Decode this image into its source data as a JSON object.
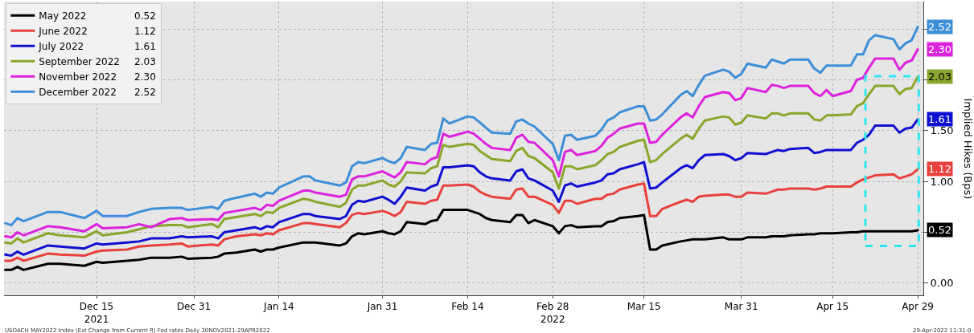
{
  "chart_data": {
    "type": "line",
    "x": [
      "2021-11-30",
      "2021-12-01",
      "2021-12-02",
      "2021-12-03",
      "2021-12-07",
      "2021-12-09",
      "2021-12-13",
      "2021-12-15",
      "2021-12-16",
      "2021-12-20",
      "2021-12-22",
      "2021-12-24",
      "2021-12-27",
      "2021-12-29",
      "2021-12-30",
      "2022-01-03",
      "2022-01-04",
      "2022-01-05",
      "2022-01-07",
      "2022-01-10",
      "2022-01-11",
      "2022-01-12",
      "2022-01-13",
      "2022-01-14",
      "2022-01-18",
      "2022-01-19",
      "2022-01-20",
      "2022-01-24",
      "2022-01-25",
      "2022-01-26",
      "2022-01-27",
      "2022-01-28",
      "2022-01-31",
      "2022-02-01",
      "2022-02-02",
      "2022-02-03",
      "2022-02-04",
      "2022-02-07",
      "2022-02-08",
      "2022-02-09",
      "2022-02-10",
      "2022-02-11",
      "2022-02-14",
      "2022-02-15",
      "2022-02-16",
      "2022-02-17",
      "2022-02-18",
      "2022-02-21",
      "2022-02-22",
      "2022-02-23",
      "2022-02-24",
      "2022-02-25",
      "2022-02-28",
      "2022-03-01",
      "2022-03-02",
      "2022-03-03",
      "2022-03-04",
      "2022-03-07",
      "2022-03-08",
      "2022-03-09",
      "2022-03-10",
      "2022-03-11",
      "2022-03-14",
      "2022-03-15",
      "2022-03-16",
      "2022-03-17",
      "2022-03-18",
      "2022-03-21",
      "2022-03-22",
      "2022-03-23",
      "2022-03-24",
      "2022-03-25",
      "2022-03-28",
      "2022-03-29",
      "2022-03-30",
      "2022-03-31",
      "2022-04-01",
      "2022-04-04",
      "2022-04-05",
      "2022-04-06",
      "2022-04-07",
      "2022-04-08",
      "2022-04-11",
      "2022-04-12",
      "2022-04-13",
      "2022-04-14",
      "2022-04-15",
      "2022-04-18",
      "2022-04-19",
      "2022-04-20",
      "2022-04-21",
      "2022-04-22",
      "2022-04-25",
      "2022-04-26",
      "2022-04-27",
      "2022-04-28",
      "2022-04-29"
    ],
    "series": [
      {
        "name": "May 2022",
        "color": "#000000",
        "values": [
          0.13,
          0.13,
          0.16,
          0.13,
          0.19,
          0.19,
          0.17,
          0.21,
          0.2,
          0.22,
          0.23,
          0.25,
          0.25,
          0.26,
          0.24,
          0.25,
          0.26,
          0.29,
          0.3,
          0.33,
          0.31,
          0.33,
          0.33,
          0.35,
          0.4,
          0.4,
          0.4,
          0.37,
          0.39,
          0.46,
          0.49,
          0.48,
          0.51,
          0.49,
          0.48,
          0.51,
          0.6,
          0.58,
          0.61,
          0.62,
          0.72,
          0.72,
          0.72,
          0.7,
          0.68,
          0.64,
          0.62,
          0.6,
          0.67,
          0.67,
          0.59,
          0.62,
          0.56,
          0.49,
          0.56,
          0.57,
          0.55,
          0.56,
          0.56,
          0.6,
          0.61,
          0.64,
          0.66,
          0.67,
          0.33,
          0.33,
          0.37,
          0.41,
          0.42,
          0.43,
          0.43,
          0.43,
          0.45,
          0.43,
          0.43,
          0.43,
          0.45,
          0.45,
          0.46,
          0.46,
          0.46,
          0.47,
          0.48,
          0.48,
          0.49,
          0.49,
          0.49,
          0.5,
          0.5,
          0.51,
          0.51,
          0.51,
          0.51,
          0.51,
          0.51,
          0.51,
          0.52
        ],
        "value_labels": [
          null,
          null,
          null,
          null,
          null,
          null,
          null,
          null,
          null,
          null,
          null,
          null,
          null,
          null,
          null,
          null,
          null,
          null,
          null,
          null,
          null,
          null,
          null,
          null,
          null,
          null,
          null,
          null,
          null,
          null,
          null,
          null,
          null,
          null,
          null,
          null,
          null,
          null,
          null,
          null,
          null,
          null,
          null,
          null,
          null,
          null,
          null,
          null,
          null,
          null,
          null,
          null,
          null,
          null,
          null,
          null,
          null,
          null,
          null,
          null,
          null,
          null,
          null,
          null,
          null,
          null,
          null,
          null,
          null,
          null,
          null,
          null,
          null,
          null,
          null,
          null,
          null,
          null,
          null,
          null,
          null,
          null,
          null,
          null,
          null,
          null,
          null,
          null,
          null,
          null,
          null,
          null,
          null,
          null,
          null,
          null,
          "0.52"
        ]
      },
      {
        "name": "June 2022",
        "color": "#e8413c",
        "values": [
          0.22,
          0.22,
          0.25,
          0.22,
          0.29,
          0.28,
          0.27,
          0.31,
          0.32,
          0.33,
          0.36,
          0.37,
          0.38,
          0.39,
          0.36,
          0.38,
          0.37,
          0.43,
          0.46,
          0.48,
          0.47,
          0.49,
          0.48,
          0.52,
          0.59,
          0.59,
          0.58,
          0.55,
          0.59,
          0.67,
          0.69,
          0.68,
          0.71,
          0.69,
          0.66,
          0.7,
          0.8,
          0.78,
          0.81,
          0.82,
          0.96,
          0.96,
          0.97,
          0.95,
          0.9,
          0.87,
          0.85,
          0.83,
          0.92,
          0.93,
          0.85,
          0.85,
          0.77,
          0.69,
          0.81,
          0.81,
          0.78,
          0.83,
          0.83,
          0.87,
          0.88,
          0.92,
          0.97,
          0.98,
          0.66,
          0.66,
          0.73,
          0.8,
          0.82,
          0.8,
          0.85,
          0.86,
          0.87,
          0.87,
          0.85,
          0.85,
          0.89,
          0.88,
          0.9,
          0.92,
          0.92,
          0.93,
          0.93,
          0.92,
          0.93,
          0.95,
          0.95,
          0.95,
          0.99,
          1.02,
          1.04,
          1.06,
          1.07,
          1.03,
          1.05,
          1.07,
          1.12
        ],
        "value_labels": [
          null,
          null,
          null,
          null,
          null,
          null,
          null,
          null,
          null,
          null,
          null,
          null,
          null,
          null,
          null,
          null,
          null,
          null,
          null,
          null,
          null,
          null,
          null,
          null,
          null,
          null,
          null,
          null,
          null,
          null,
          null,
          null,
          null,
          null,
          null,
          null,
          null,
          null,
          null,
          null,
          null,
          null,
          null,
          null,
          null,
          null,
          null,
          null,
          null,
          null,
          null,
          null,
          null,
          null,
          null,
          null,
          null,
          null,
          null,
          null,
          null,
          null,
          null,
          null,
          null,
          null,
          null,
          null,
          null,
          null,
          null,
          null,
          null,
          null,
          null,
          null,
          null,
          null,
          null,
          null,
          null,
          null,
          null,
          null,
          null,
          null,
          null,
          null,
          null,
          null,
          null,
          null,
          null,
          null,
          null,
          null,
          "1.12"
        ]
      },
      {
        "name": "July 2022",
        "color": "#1010d0",
        "values": [
          0.28,
          0.27,
          0.31,
          0.28,
          0.37,
          0.36,
          0.34,
          0.39,
          0.38,
          0.4,
          0.41,
          0.44,
          0.44,
          0.46,
          0.45,
          0.46,
          0.44,
          0.5,
          0.52,
          0.55,
          0.53,
          0.56,
          0.55,
          0.6,
          0.68,
          0.68,
          0.66,
          0.63,
          0.66,
          0.77,
          0.81,
          0.8,
          0.85,
          0.82,
          0.78,
          0.85,
          0.94,
          0.91,
          0.95,
          0.97,
          1.14,
          1.14,
          1.16,
          1.15,
          1.09,
          1.05,
          1.03,
          1.01,
          1.1,
          1.12,
          1.03,
          1.01,
          0.91,
          0.8,
          0.96,
          0.98,
          0.95,
          0.99,
          1.01,
          1.07,
          1.08,
          1.12,
          1.17,
          1.19,
          0.93,
          0.94,
          0.99,
          1.13,
          1.16,
          1.13,
          1.21,
          1.26,
          1.27,
          1.25,
          1.21,
          1.23,
          1.28,
          1.27,
          1.29,
          1.31,
          1.3,
          1.32,
          1.33,
          1.28,
          1.29,
          1.31,
          1.31,
          1.31,
          1.38,
          1.41,
          1.46,
          1.55,
          1.55,
          1.48,
          1.52,
          1.53,
          1.61
        ],
        "value_labels": [
          null,
          null,
          null,
          null,
          null,
          null,
          null,
          null,
          null,
          null,
          null,
          null,
          null,
          null,
          null,
          null,
          null,
          null,
          null,
          null,
          null,
          null,
          null,
          null,
          null,
          null,
          null,
          null,
          null,
          null,
          null,
          null,
          null,
          null,
          null,
          null,
          null,
          null,
          null,
          null,
          null,
          null,
          null,
          null,
          null,
          null,
          null,
          null,
          null,
          null,
          null,
          null,
          null,
          null,
          null,
          null,
          null,
          null,
          null,
          null,
          null,
          null,
          null,
          null,
          null,
          null,
          null,
          null,
          null,
          null,
          null,
          null,
          null,
          null,
          null,
          null,
          null,
          null,
          null,
          null,
          null,
          null,
          null,
          null,
          null,
          null,
          null,
          null,
          null,
          null,
          null,
          null,
          null,
          null,
          null,
          null,
          "1.61"
        ]
      },
      {
        "name": "September 2022",
        "color": "#8aa62c",
        "values": [
          0.4,
          0.39,
          0.44,
          0.4,
          0.49,
          0.47,
          0.45,
          0.51,
          0.47,
          0.5,
          0.53,
          0.56,
          0.57,
          0.57,
          0.55,
          0.58,
          0.55,
          0.63,
          0.65,
          0.68,
          0.66,
          0.7,
          0.69,
          0.74,
          0.83,
          0.82,
          0.8,
          0.75,
          0.79,
          0.92,
          0.96,
          0.96,
          1.01,
          0.97,
          0.95,
          1.0,
          1.09,
          1.08,
          1.13,
          1.15,
          1.36,
          1.34,
          1.37,
          1.36,
          1.3,
          1.26,
          1.22,
          1.2,
          1.3,
          1.33,
          1.25,
          1.23,
          1.09,
          0.93,
          1.15,
          1.15,
          1.12,
          1.16,
          1.21,
          1.27,
          1.29,
          1.34,
          1.4,
          1.41,
          1.19,
          1.21,
          1.27,
          1.42,
          1.46,
          1.42,
          1.52,
          1.6,
          1.64,
          1.63,
          1.56,
          1.58,
          1.65,
          1.62,
          1.67,
          1.67,
          1.65,
          1.67,
          1.67,
          1.61,
          1.6,
          1.65,
          1.65,
          1.66,
          1.74,
          1.77,
          1.86,
          1.94,
          1.94,
          1.86,
          1.91,
          1.92,
          2.03
        ],
        "value_labels": [
          null,
          null,
          null,
          null,
          null,
          null,
          null,
          null,
          null,
          null,
          null,
          null,
          null,
          null,
          null,
          null,
          null,
          null,
          null,
          null,
          null,
          null,
          null,
          null,
          null,
          null,
          null,
          null,
          null,
          null,
          null,
          null,
          null,
          null,
          null,
          null,
          null,
          null,
          null,
          null,
          null,
          null,
          null,
          null,
          null,
          null,
          null,
          null,
          null,
          null,
          null,
          null,
          null,
          null,
          null,
          null,
          null,
          null,
          null,
          null,
          null,
          null,
          null,
          null,
          null,
          null,
          null,
          null,
          null,
          null,
          null,
          null,
          null,
          null,
          null,
          null,
          null,
          null,
          null,
          null,
          null,
          null,
          null,
          null,
          null,
          null,
          null,
          null,
          null,
          null,
          null,
          null,
          null,
          null,
          null,
          null,
          "2.03"
        ]
      },
      {
        "name": "November 2022",
        "color": "#dd22dd",
        "values": [
          0.46,
          0.45,
          0.5,
          0.47,
          0.56,
          0.55,
          0.51,
          0.58,
          0.54,
          0.55,
          0.58,
          0.55,
          0.63,
          0.64,
          0.62,
          0.63,
          0.62,
          0.69,
          0.71,
          0.74,
          0.72,
          0.77,
          0.76,
          0.81,
          0.91,
          0.91,
          0.89,
          0.85,
          0.87,
          1.02,
          1.05,
          1.05,
          1.1,
          1.07,
          1.04,
          1.09,
          1.19,
          1.17,
          1.22,
          1.24,
          1.47,
          1.44,
          1.49,
          1.47,
          1.42,
          1.37,
          1.33,
          1.31,
          1.43,
          1.46,
          1.39,
          1.38,
          1.21,
          1.05,
          1.29,
          1.31,
          1.26,
          1.3,
          1.35,
          1.43,
          1.47,
          1.52,
          1.57,
          1.57,
          1.38,
          1.39,
          1.46,
          1.63,
          1.67,
          1.63,
          1.74,
          1.83,
          1.88,
          1.87,
          1.8,
          1.82,
          1.92,
          1.88,
          1.95,
          1.94,
          1.92,
          1.94,
          1.94,
          1.87,
          1.84,
          1.9,
          1.84,
          1.89,
          2.0,
          2.02,
          2.12,
          2.21,
          2.21,
          2.1,
          2.17,
          2.19,
          2.3
        ],
        "value_labels": [
          null,
          null,
          null,
          null,
          null,
          null,
          null,
          null,
          null,
          null,
          null,
          null,
          null,
          null,
          null,
          null,
          null,
          null,
          null,
          null,
          null,
          null,
          null,
          null,
          null,
          null,
          null,
          null,
          null,
          null,
          null,
          null,
          null,
          null,
          null,
          null,
          null,
          null,
          null,
          null,
          null,
          null,
          null,
          null,
          null,
          null,
          null,
          null,
          null,
          null,
          null,
          null,
          null,
          null,
          null,
          null,
          null,
          null,
          null,
          null,
          null,
          null,
          null,
          null,
          null,
          null,
          null,
          null,
          null,
          null,
          null,
          null,
          null,
          null,
          null,
          null,
          null,
          null,
          null,
          null,
          null,
          null,
          null,
          null,
          null,
          null,
          null,
          null,
          null,
          null,
          null,
          null,
          null,
          null,
          null,
          null,
          "2.30"
        ]
      },
      {
        "name": "December 2022",
        "color": "#3d8ed8",
        "values": [
          0.59,
          0.57,
          0.64,
          0.61,
          0.7,
          0.7,
          0.64,
          0.71,
          0.66,
          0.66,
          0.7,
          0.73,
          0.74,
          0.74,
          0.72,
          0.75,
          0.73,
          0.81,
          0.84,
          0.88,
          0.85,
          0.89,
          0.88,
          0.94,
          1.05,
          1.05,
          1.01,
          0.96,
          0.99,
          1.15,
          1.19,
          1.18,
          1.23,
          1.2,
          1.18,
          1.23,
          1.34,
          1.31,
          1.37,
          1.38,
          1.62,
          1.57,
          1.64,
          1.63,
          1.58,
          1.53,
          1.48,
          1.47,
          1.59,
          1.61,
          1.57,
          1.54,
          1.37,
          1.21,
          1.45,
          1.46,
          1.41,
          1.45,
          1.51,
          1.6,
          1.63,
          1.68,
          1.74,
          1.74,
          1.6,
          1.61,
          1.66,
          1.85,
          1.89,
          1.84,
          1.95,
          2.04,
          2.1,
          2.08,
          2.02,
          2.06,
          2.16,
          2.12,
          2.2,
          2.18,
          2.16,
          2.2,
          2.2,
          2.11,
          2.07,
          2.14,
          2.14,
          2.14,
          2.25,
          2.25,
          2.39,
          2.44,
          2.4,
          2.3,
          2.36,
          2.39,
          2.52
        ],
        "value_labels": [
          null,
          null,
          null,
          null,
          null,
          null,
          null,
          null,
          null,
          null,
          null,
          null,
          null,
          null,
          null,
          null,
          null,
          null,
          null,
          null,
          null,
          null,
          null,
          null,
          null,
          null,
          null,
          null,
          null,
          null,
          null,
          null,
          null,
          null,
          null,
          null,
          null,
          null,
          null,
          null,
          null,
          null,
          null,
          null,
          null,
          null,
          null,
          null,
          null,
          null,
          null,
          null,
          null,
          null,
          null,
          null,
          null,
          null,
          null,
          null,
          null,
          null,
          null,
          null,
          null,
          null,
          null,
          null,
          null,
          null,
          null,
          null,
          null,
          null,
          null,
          null,
          null,
          null,
          null,
          null,
          null,
          null,
          null,
          null,
          null,
          null,
          null,
          null,
          null,
          null,
          null,
          null,
          null,
          null,
          null,
          null,
          "2.52"
        ]
      }
    ],
    "xlim": [
      "2021-11-29T19:00",
      "2022-04-29T22:00"
    ],
    "xticks": [
      {
        "value": "2021-12-15",
        "label": "Dec 15\n2021"
      },
      {
        "value": "2021-12-31",
        "label": "Dec 31"
      },
      {
        "value": "2022-01-14",
        "label": "Jan 14"
      },
      {
        "value": "2022-01-31",
        "label": "Jan 31"
      },
      {
        "value": "2022-02-14",
        "label": "Feb 14"
      },
      {
        "value": "2022-02-28",
        "label": "Feb 28\n2022"
      },
      {
        "value": "2022-03-15",
        "label": "Mar 15"
      },
      {
        "value": "2022-03-31",
        "label": "Mar 31"
      },
      {
        "value": "2022-04-15",
        "label": "Apr 15"
      },
      {
        "value": "2022-04-29",
        "label": "Apr 29"
      }
    ],
    "ylim": [
      -0.12,
      2.77
    ],
    "yticks": [
      {
        "value": 0,
        "label": "0.00"
      },
      {
        "value": 0.5,
        "label": null
      },
      {
        "value": 1,
        "label": "1.00"
      },
      {
        "value": 1.5,
        "label": "1.50"
      },
      {
        "value": 2,
        "label": null
      },
      {
        "value": 2.5,
        "label": null
      }
    ],
    "ylabel": "Implied Hikes (Bps)",
    "annotations": [
      "USOACH MAY2022 Index (Est Change from Current R) Fed rates Daily 30NOV2021-29APR2022",
      "29-Apr-2022 11:31:0"
    ],
    "grid": true,
    "legend": "top left",
    "line_style": "solid"
  }
}
